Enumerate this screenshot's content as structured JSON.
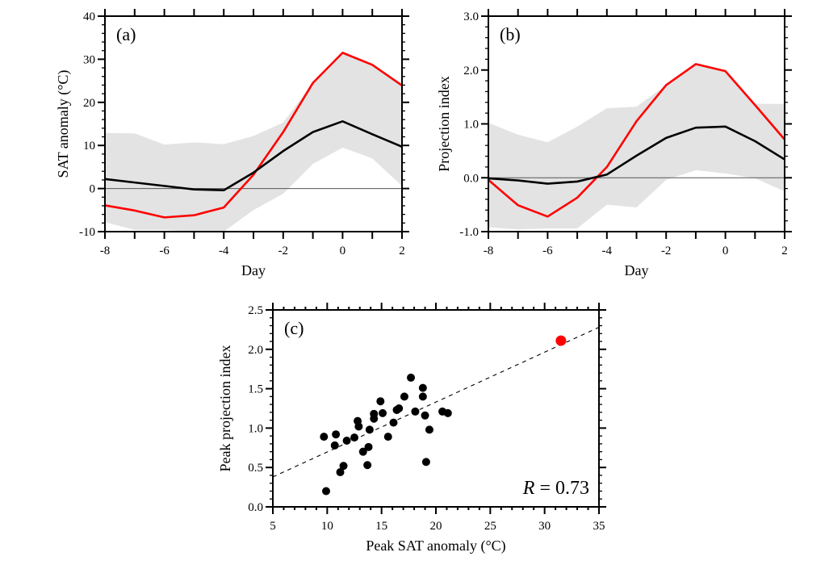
{
  "chart_data": [
    {
      "id": "a",
      "type": "line",
      "panel_label": "(a)",
      "title": "",
      "xlabel": "Day",
      "ylabel": "SAT anomaly (°C)",
      "xlim": [
        -8,
        2
      ],
      "ylim": [
        -10,
        40
      ],
      "x_ticks": [
        -8,
        -6,
        -4,
        -2,
        0,
        2
      ],
      "x_tick_labels": [
        "-8",
        "-6",
        "-4",
        "-2",
        "0",
        "2"
      ],
      "y_ticks": [
        -10,
        0,
        10,
        20,
        30,
        40
      ],
      "y_tick_labels": [
        "-10",
        "0",
        "10",
        "20",
        "30",
        "40"
      ],
      "y_minor_step": 2,
      "x_minor_step": 1,
      "zero_line": true,
      "grid": false,
      "x": [
        -8,
        -7,
        -6,
        -5,
        -4,
        -3,
        -2,
        -1,
        0,
        1,
        2
      ],
      "band": {
        "name": "spread range",
        "color": "#e3e3e3",
        "upper": [
          12.9,
          12.8,
          10.2,
          10.7,
          10.3,
          12.2,
          15.3,
          24.5,
          31.5,
          28.7,
          23.9
        ],
        "lower": [
          -7.8,
          -9.6,
          -9.6,
          -10,
          -10,
          -5.0,
          -1.2,
          5.7,
          9.5,
          7.0,
          0.6
        ]
      },
      "series": [
        {
          "name": "red-series",
          "color": "#ff0000",
          "values": [
            -3.9,
            -5.1,
            -6.7,
            -6.2,
            -4.4,
            3.2,
            13.1,
            24.5,
            31.5,
            28.7,
            23.9
          ]
        },
        {
          "name": "black-series",
          "color": "#000000",
          "values": [
            2.2,
            1.4,
            0.6,
            -0.2,
            -0.4,
            3.7,
            8.7,
            13.1,
            15.6,
            12.6,
            9.7
          ]
        }
      ]
    },
    {
      "id": "b",
      "type": "line",
      "panel_label": "(b)",
      "title": "",
      "xlabel": "Day",
      "ylabel": "Projection index",
      "xlim": [
        -8,
        2
      ],
      "ylim": [
        -1.0,
        3.0
      ],
      "x_ticks": [
        -8,
        -6,
        -4,
        -2,
        0,
        2
      ],
      "x_tick_labels": [
        "-8",
        "-6",
        "-4",
        "-2",
        "0",
        "2"
      ],
      "y_ticks": [
        -1.0,
        0.0,
        1.0,
        2.0,
        3.0
      ],
      "y_tick_labels": [
        "-1.0",
        "0.0",
        "1.0",
        "2.0",
        "3.0"
      ],
      "y_minor_step": 0.2,
      "x_minor_step": 1,
      "zero_line": true,
      "grid": false,
      "x": [
        -8,
        -7,
        -6,
        -5,
        -4,
        -3,
        -2,
        -1,
        0,
        1,
        2
      ],
      "band": {
        "name": "spread range",
        "color": "#e3e3e3",
        "upper": [
          1.02,
          0.8,
          0.66,
          0.95,
          1.29,
          1.32,
          1.72,
          2.11,
          1.98,
          1.37,
          1.37
        ],
        "lower": [
          -0.92,
          -0.96,
          -0.94,
          -0.94,
          -0.5,
          -0.55,
          -0.04,
          0.14,
          0.08,
          -0.01,
          -0.25
        ]
      },
      "series": [
        {
          "name": "red-series",
          "color": "#ff0000",
          "values": [
            -0.04,
            -0.51,
            -0.72,
            -0.37,
            0.2,
            1.05,
            1.72,
            2.11,
            1.98,
            1.35,
            0.71
          ]
        },
        {
          "name": "black-series",
          "color": "#000000",
          "values": [
            -0.01,
            -0.05,
            -0.11,
            -0.07,
            0.06,
            0.41,
            0.74,
            0.93,
            0.95,
            0.68,
            0.34
          ]
        }
      ]
    },
    {
      "id": "c",
      "type": "scatter",
      "panel_label": "(c)",
      "title": "",
      "xlabel": "Peak SAT anomaly (°C)",
      "ylabel": "Peak projection index",
      "xlim": [
        5,
        35
      ],
      "ylim": [
        0.0,
        2.5
      ],
      "x_ticks": [
        5,
        10,
        15,
        20,
        25,
        30,
        35
      ],
      "x_tick_labels": [
        "5",
        "10",
        "15",
        "20",
        "25",
        "30",
        "35"
      ],
      "y_ticks": [
        0.0,
        0.5,
        1.0,
        1.5,
        2.0,
        2.5
      ],
      "y_tick_labels": [
        "0.0",
        "0.5",
        "1.0",
        "1.5",
        "2.0",
        "2.5"
      ],
      "x_minor_step": 1,
      "y_minor_step": 0.1,
      "grid": false,
      "annotation": {
        "prefix": "R",
        "text": " = 0.73",
        "position": "bottom-right"
      },
      "regression_line": {
        "style": "dashed",
        "color": "#000000",
        "x": [
          5,
          35
        ],
        "y": [
          0.38,
          2.28
        ]
      },
      "points": [
        {
          "x": 9.7,
          "y": 0.89
        },
        {
          "x": 10.8,
          "y": 0.92
        },
        {
          "x": 10.7,
          "y": 0.78
        },
        {
          "x": 11.8,
          "y": 0.84
        },
        {
          "x": 12.5,
          "y": 0.88
        },
        {
          "x": 12.9,
          "y": 1.02
        },
        {
          "x": 12.8,
          "y": 1.09
        },
        {
          "x": 11.5,
          "y": 0.52
        },
        {
          "x": 11.2,
          "y": 0.44
        },
        {
          "x": 9.9,
          "y": 0.2
        },
        {
          "x": 13.3,
          "y": 0.7
        },
        {
          "x": 13.8,
          "y": 0.76
        },
        {
          "x": 13.7,
          "y": 0.53
        },
        {
          "x": 13.9,
          "y": 0.98
        },
        {
          "x": 15.6,
          "y": 0.89
        },
        {
          "x": 16.1,
          "y": 1.07
        },
        {
          "x": 17.7,
          "y": 1.64
        },
        {
          "x": 18.8,
          "y": 1.51
        },
        {
          "x": 18.8,
          "y": 1.4
        },
        {
          "x": 17.1,
          "y": 1.4
        },
        {
          "x": 14.9,
          "y": 1.34
        },
        {
          "x": 16.6,
          "y": 1.25
        },
        {
          "x": 16.4,
          "y": 1.23
        },
        {
          "x": 18.1,
          "y": 1.21
        },
        {
          "x": 19.0,
          "y": 1.16
        },
        {
          "x": 20.6,
          "y": 1.21
        },
        {
          "x": 21.1,
          "y": 1.19
        },
        {
          "x": 15.1,
          "y": 1.19
        },
        {
          "x": 14.3,
          "y": 1.18
        },
        {
          "x": 14.3,
          "y": 1.12
        },
        {
          "x": 19.4,
          "y": 0.98
        },
        {
          "x": 19.1,
          "y": 0.57
        }
      ],
      "highlight_point": {
        "x": 31.5,
        "y": 2.11,
        "color": "#ff0000"
      }
    }
  ]
}
